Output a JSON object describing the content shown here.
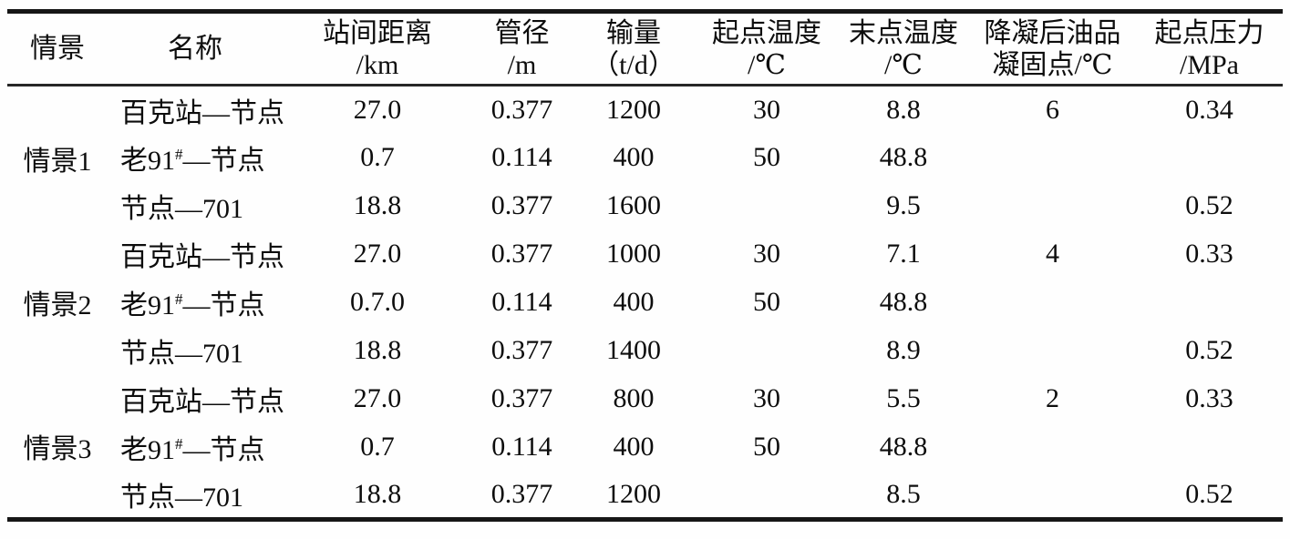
{
  "table": {
    "headers": [
      {
        "line1": "情景",
        "line2": ""
      },
      {
        "line1": "名称",
        "line2": ""
      },
      {
        "line1": "站间距离",
        "line2": "/km"
      },
      {
        "line1": "管径",
        "line2": "/m"
      },
      {
        "line1": "输量",
        "line2": "（t/d）"
      },
      {
        "line1": "起点温度",
        "line2": "/℃"
      },
      {
        "line1": "末点温度",
        "line2": "/℃"
      },
      {
        "line1": "降凝后油品",
        "line2": "凝固点/℃"
      },
      {
        "line1": "起点压力",
        "line2": "/MPa"
      }
    ],
    "column_keys": [
      "scenario",
      "name",
      "distance_km",
      "diameter_m",
      "throughput_t_d",
      "start_temp_c",
      "end_temp_c",
      "pour_point_after_depressant_c",
      "start_pressure_mpa"
    ],
    "groups": [
      {
        "scenario": "情景1",
        "rows": [
          {
            "name": {
              "pre": "百克站—节点",
              "sup": "",
              "post": ""
            },
            "values": [
              "27.0",
              "0.377",
              "1200",
              "30",
              "8.8",
              "6",
              "0.34"
            ]
          },
          {
            "name": {
              "pre": "老91",
              "sup": "#",
              "post": "—节点"
            },
            "values": [
              "0.7",
              "0.114",
              "400",
              "50",
              "48.8",
              "",
              ""
            ]
          },
          {
            "name": {
              "pre": "节点—701",
              "sup": "",
              "post": ""
            },
            "values": [
              "18.8",
              "0.377",
              "1600",
              "",
              "9.5",
              "",
              "0.52"
            ]
          }
        ]
      },
      {
        "scenario": "情景2",
        "rows": [
          {
            "name": {
              "pre": "百克站—节点",
              "sup": "",
              "post": ""
            },
            "values": [
              "27.0",
              "0.377",
              "1000",
              "30",
              "7.1",
              "4",
              "0.33"
            ]
          },
          {
            "name": {
              "pre": "老91",
              "sup": "#",
              "post": "—节点"
            },
            "values": [
              "0.7.0",
              "0.114",
              "400",
              "50",
              "48.8",
              "",
              ""
            ]
          },
          {
            "name": {
              "pre": "节点—701",
              "sup": "",
              "post": ""
            },
            "values": [
              "18.8",
              "0.377",
              "1400",
              "",
              "8.9",
              "",
              "0.52"
            ]
          }
        ]
      },
      {
        "scenario": "情景3",
        "rows": [
          {
            "name": {
              "pre": "百克站—节点",
              "sup": "",
              "post": ""
            },
            "values": [
              "27.0",
              "0.377",
              "800",
              "30",
              "5.5",
              "2",
              "0.33"
            ]
          },
          {
            "name": {
              "pre": "老91",
              "sup": "#",
              "post": "—节点"
            },
            "values": [
              "0.7",
              "0.114",
              "400",
              "50",
              "48.8",
              "",
              ""
            ]
          },
          {
            "name": {
              "pre": "节点—701",
              "sup": "",
              "post": ""
            },
            "values": [
              "18.8",
              "0.377",
              "1200",
              "",
              "8.5",
              "",
              "0.52"
            ]
          }
        ]
      }
    ],
    "colors": {
      "rule_heavy": "#161616",
      "rule_light": "#262626",
      "text": "#0d0d0d",
      "background": "#fefefe"
    }
  }
}
